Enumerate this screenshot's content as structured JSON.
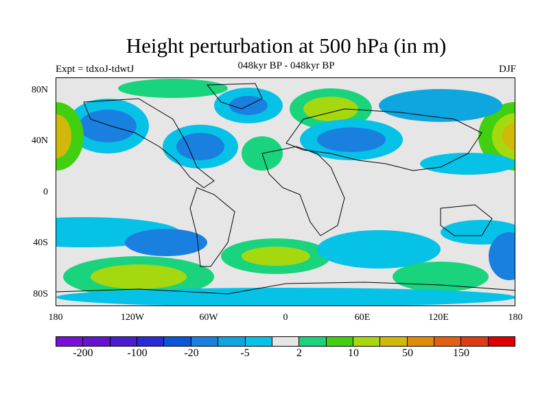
{
  "title": "Height perturbation at 500 hPa (in m)",
  "subtitle": "048kyr BP - 048kyr BP",
  "experiment_label": "Expt = tdxoJ-tdwtJ",
  "season_label": "DJF",
  "lat_labels": [
    "80N",
    "40N",
    "0",
    "40S",
    "80S"
  ],
  "lon_labels": [
    "180",
    "120W",
    "60W",
    "0",
    "60E",
    "120E",
    "180"
  ],
  "colorbar": {
    "colors": [
      "#7a10d8",
      "#6414d0",
      "#4a1ed0",
      "#2a2ad8",
      "#0a56d8",
      "#1a80e0",
      "#0fa6e0",
      "#06c2e6",
      "#e6e6e6",
      "#1ad37d",
      "#40d010",
      "#a6d810",
      "#d2b80a",
      "#e08c0a",
      "#e06010",
      "#e03a14",
      "#e00000"
    ],
    "labels": [
      "-200",
      "-100",
      "-20",
      "-5",
      "2",
      "10",
      "50",
      "150"
    ]
  }
}
